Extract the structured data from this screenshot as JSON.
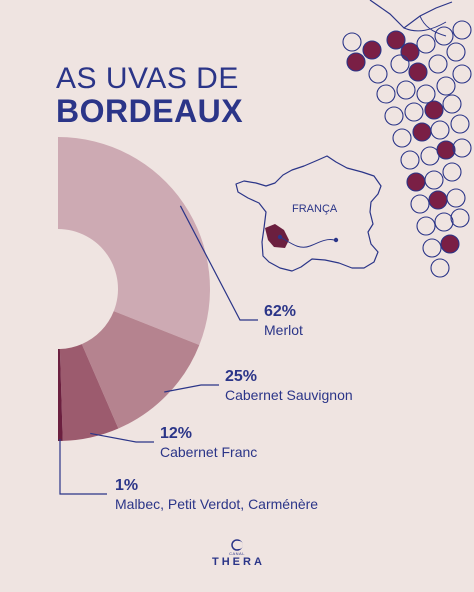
{
  "title_line1": "AS UVAS DE",
  "title_line2": "BORDEAUX",
  "map_label": "FRANÇA",
  "brand": {
    "small": "CANAL",
    "name": "THERA"
  },
  "colors": {
    "merlot": "#cdaab3",
    "cabernet_sauvignon": "#b5838f",
    "cabernet_franc": "#9c5b6e",
    "others": "#6b1f3f",
    "navy": "#2b3588",
    "grape_dark": "#7a1f45",
    "background": "#efe4e1"
  },
  "chart_data": {
    "type": "pie",
    "variant": "half-donut",
    "slices": [
      {
        "label": "Merlot",
        "value": 62,
        "value_label": "62%",
        "color": "#cdaab3"
      },
      {
        "label": "Cabernet Sauvignon",
        "value": 25,
        "value_label": "25%",
        "color": "#b5838f"
      },
      {
        "label": "Cabernet Franc",
        "value": 12,
        "value_label": "12%",
        "color": "#9c5b6e"
      },
      {
        "label": "Malbec, Petit Verdot, Carménère",
        "value": 1,
        "value_label": "1%",
        "color": "#6b1f3f"
      }
    ]
  }
}
